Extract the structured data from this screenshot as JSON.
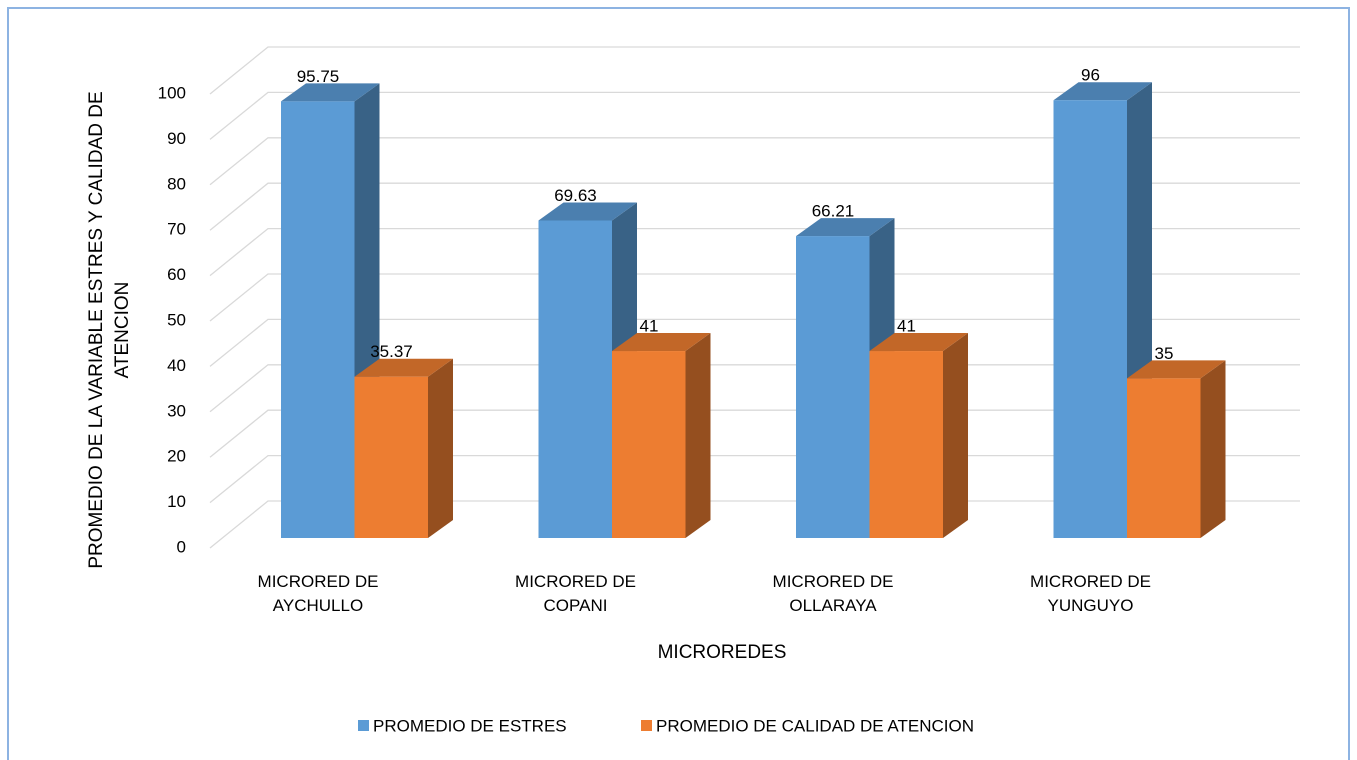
{
  "chart_data": {
    "type": "bar3d",
    "categories": [
      "MICRORED DE AYCHULLO",
      "MICRORED DE COPANI",
      "MICRORED DE OLLARAYA",
      "MICRORED DE YUNGUYO"
    ],
    "series": [
      {
        "name": "PROMEDIO DE ESTRES",
        "color": "#5b9bd5",
        "values": [
          95.75,
          69.63,
          66.21,
          96
        ]
      },
      {
        "name": "PROMEDIO DE CALIDAD DE ATENCION",
        "color": "#ed7d31",
        "values": [
          35.37,
          41,
          41,
          35
        ]
      }
    ],
    "x_label": "MICROREDES",
    "y_label": [
      "PROMEDIO DE   LA  VARIABLE ESTRES Y CALIDAD DE",
      "ATENCION"
    ],
    "ylim": [
      0,
      100
    ],
    "yticks": [
      0,
      10,
      20,
      30,
      40,
      50,
      60,
      70,
      80,
      90,
      100
    ],
    "grid": true,
    "legend": "bottom"
  }
}
